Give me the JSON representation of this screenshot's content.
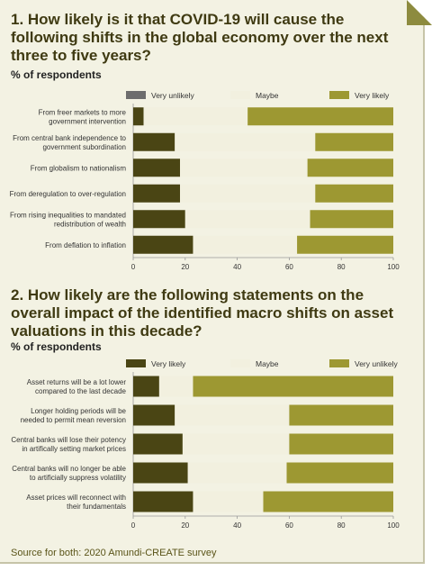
{
  "q1": {
    "title": "1. How likely is it that COVID-19 will cause the following shifts in the global economy over the next three to five years?",
    "subtitle": "% of respondents"
  },
  "q2": {
    "title": "2. How likely are the following statements on the overall impact of the identified macro shifts on asset valuations in this decade?",
    "subtitle": "% of respondents"
  },
  "source": "Source for both: 2020 Amundi-CREATE survey",
  "colors": {
    "very_unlikely_q1": "#6d6d6d",
    "dark_olive": "#4a4514",
    "maybe": "#f2f0df",
    "very_likely_q1": "#9d9832",
    "very_unlikely_q2": "#9d9832"
  },
  "chart_data": [
    {
      "type": "bar",
      "orientation": "horizontal",
      "stacked": true,
      "legend": [
        "Very unlikely",
        "Maybe",
        "Very likely"
      ],
      "legend_position": "top",
      "categories": [
        "From freer markets to more government intervention",
        "From central bank independence to government subordination",
        "From globalism to nationalism",
        "From deregulation to over-regulation",
        "From rising inequalities to mandated redistribution of wealth",
        "From deflation to inflation"
      ],
      "series": [
        {
          "name": "Very unlikely",
          "values": [
            4,
            16,
            18,
            18,
            20,
            23
          ],
          "color": "#4a4514"
        },
        {
          "name": "Maybe",
          "values": [
            40,
            54,
            49,
            52,
            48,
            40
          ],
          "color": "#f2f0df"
        },
        {
          "name": "Very likely",
          "values": [
            56,
            30,
            33,
            30,
            32,
            37
          ],
          "color": "#9d9832"
        }
      ],
      "xlim": [
        0,
        100
      ],
      "xticks": [
        "0",
        "20",
        "40",
        "60",
        "80",
        "100"
      ],
      "legend_colors": [
        "#6d6d6d",
        "#f2f0df",
        "#9d9832"
      ]
    },
    {
      "type": "bar",
      "orientation": "horizontal",
      "stacked": true,
      "legend": [
        "Very likely",
        "Maybe",
        "Very unlikely"
      ],
      "legend_position": "top",
      "categories": [
        "Asset returns will be a lot lower compared to the last decade",
        "Longer holding periods will be needed to permit mean reversion",
        "Central banks will lose their potency in artifically setting market prices",
        "Central banks will no longer be able to artificially suppress volatility",
        "Asset prices will reconnect with their fundamentals"
      ],
      "series": [
        {
          "name": "Very likely",
          "values": [
            10,
            16,
            19,
            21,
            23
          ],
          "color": "#4a4514"
        },
        {
          "name": "Maybe",
          "values": [
            13,
            44,
            41,
            38,
            27
          ],
          "color": "#f2f0df"
        },
        {
          "name": "Very unlikely",
          "values": [
            77,
            40,
            40,
            41,
            50
          ],
          "color": "#9d9832"
        }
      ],
      "xlim": [
        0,
        100
      ],
      "xticks": [
        "0",
        "20",
        "40",
        "60",
        "80",
        "100"
      ],
      "legend_colors": [
        "#4a4514",
        "#f2f0df",
        "#9d9832"
      ]
    }
  ],
  "labels_q1": [
    [
      "From freer markets to more",
      "government intervention"
    ],
    [
      "From central bank independence to",
      "government subordination"
    ],
    [
      "From globalism to nationalism"
    ],
    [
      "From deregulation to over-regulation"
    ],
    [
      "From rising inequalities to mandated",
      "redistribution of wealth"
    ],
    [
      "From deflation to inflation"
    ]
  ],
  "labels_q2": [
    [
      "Asset returns will be a lot lower",
      "compared to the last decade"
    ],
    [
      "Longer holding periods will be",
      "needed to permit mean reversion"
    ],
    [
      "Central banks will lose their potency",
      "in artifically setting market prices"
    ],
    [
      "Central banks will no longer be able",
      "to artificially suppress volatility"
    ],
    [
      "Asset prices will reconnect with",
      "their fundamentals"
    ]
  ]
}
